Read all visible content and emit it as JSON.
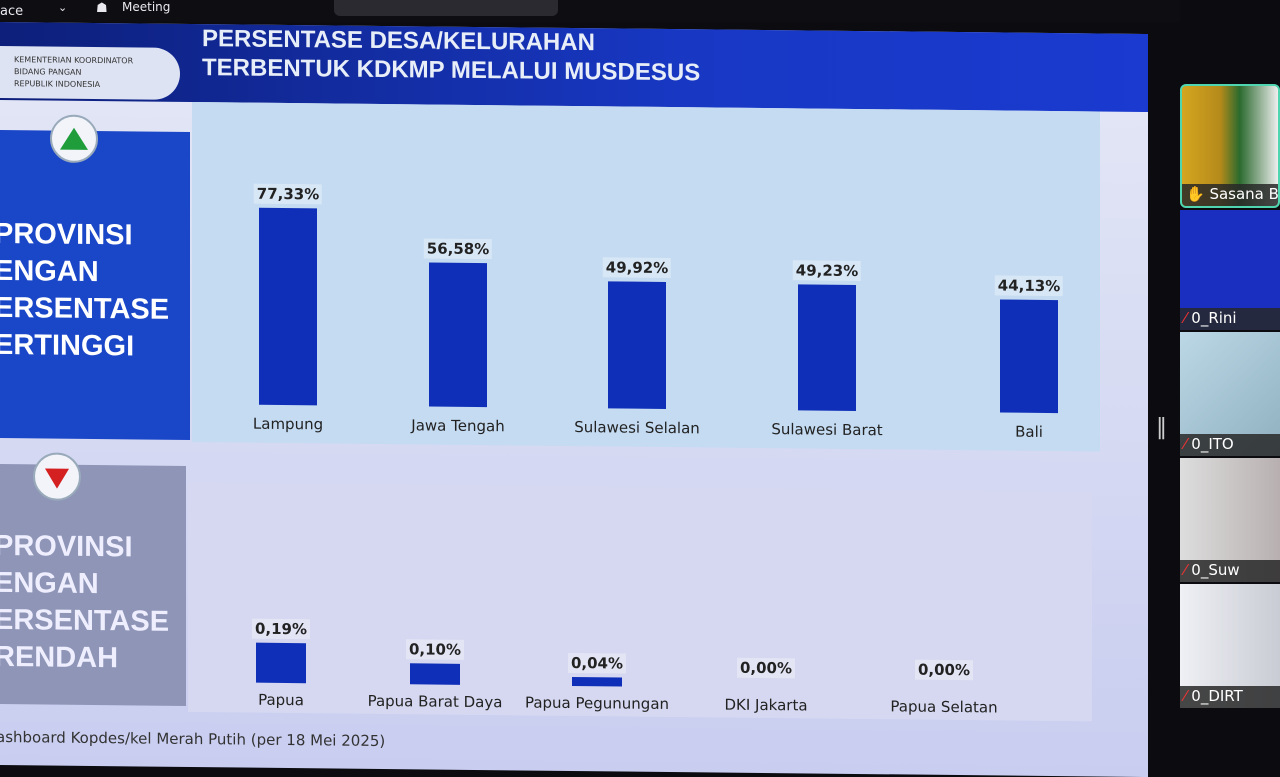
{
  "topbar": {
    "workspace_label": "ace",
    "meeting_label": "Meeting"
  },
  "header": {
    "org_lines": [
      "KEMENTERIAN KOORDINATOR",
      "BIDANG PANGAN",
      "REPUBLIK INDONESIA"
    ],
    "title_line1": "PERSENTASE DESA/KELURAHAN",
    "title_line2": "TERBENTUK KDKMP MELALUI MUSDESUS"
  },
  "top_panel": {
    "text": "PROVINSI\nENGAN\nERSENTASE\nERTINGGI",
    "icon": "triangle-up-green"
  },
  "bottom_panel": {
    "text": "PROVINSI\nENGAN\nERSENTASE\nRENDAH",
    "icon": "triangle-down-red"
  },
  "colors": {
    "bar": "#0f2fb8",
    "header": "#1838c4",
    "top_panel": "#1a46c8",
    "bottom_panel": "#8e95b6"
  },
  "chart_data": [
    {
      "type": "bar",
      "title": "",
      "categories": [
        "Lampung",
        "Jawa Tengah",
        "Sulawesi Selalan",
        "Sulawesi Barat",
        "Bali"
      ],
      "values": [
        77.33,
        56.58,
        49.92,
        49.23,
        44.13
      ],
      "labels": [
        "77,33%",
        "56,58%",
        "49,92%",
        "49,23%",
        "44,13%"
      ],
      "ylim": [
        0,
        100
      ],
      "grid": false
    },
    {
      "type": "bar",
      "title": "",
      "categories": [
        "Papua",
        "Papua Barat Daya",
        "Papua Pegunungan",
        "DKI Jakarta",
        "Papua Selatan"
      ],
      "values": [
        0.19,
        0.1,
        0.04,
        0.0,
        0.0
      ],
      "labels": [
        "0,19%",
        "0,10%",
        "0,04%",
        "0,00%",
        "0,00%"
      ],
      "ylim": [
        0,
        0.4
      ],
      "grid": false
    }
  ],
  "footer": "ashboard Kopdes/kel Merah Putih (per 18 Mei 2025)",
  "participants": [
    "Sasana B",
    "0_Rini",
    "0_ITO",
    "0_Suw",
    "0_DIRT"
  ]
}
